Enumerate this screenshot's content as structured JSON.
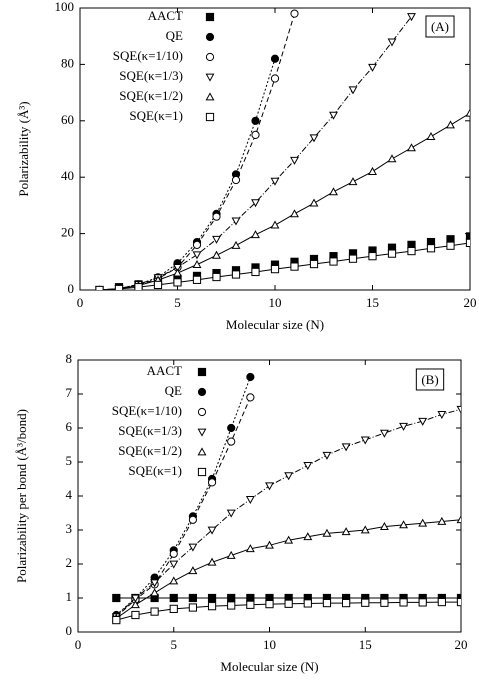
{
  "chart_data": [
    {
      "type": "line",
      "annotation": "(A)",
      "xlabel": "Molecular size (N)",
      "ylabel": "Polarizability (Å³)",
      "x": [
        1,
        2,
        3,
        4,
        5,
        6,
        7,
        8,
        9,
        10,
        11,
        12,
        13,
        14,
        15,
        16,
        17,
        18,
        19,
        20
      ],
      "xlim": [
        0,
        20
      ],
      "ylim": [
        0,
        100
      ],
      "xticks": [
        0,
        5,
        10,
        15,
        20
      ],
      "yticks": [
        0,
        20,
        40,
        60,
        80,
        100
      ],
      "series": [
        {
          "name": "AACT",
          "color": "#000000",
          "marker": "square-filled",
          "dash": "none",
          "values": [
            0,
            1,
            2,
            3,
            4,
            5,
            6,
            7,
            8,
            9,
            10,
            11,
            12,
            13,
            14,
            15,
            16,
            17,
            18,
            19
          ]
        },
        {
          "name": "QE",
          "color": "#000000",
          "marker": "circle-filled",
          "dash": "dotted",
          "values": [
            0,
            0.5,
            2,
            4.5,
            9.5,
            17,
            27,
            41,
            60,
            82,
            null,
            null,
            null,
            null,
            null,
            null,
            null,
            null,
            null,
            null
          ]
        },
        {
          "name": "SQE(κ=1/10)",
          "color": "#000000",
          "marker": "circle-open",
          "dash": "dashed",
          "values": [
            0,
            0.5,
            1.8,
            4,
            8,
            16,
            26,
            39,
            55,
            75,
            98,
            null,
            null,
            null,
            null,
            null,
            null,
            null,
            null,
            null
          ]
        },
        {
          "name": "SQE(κ=1/3)",
          "color": "#000000",
          "marker": "triangle-down-open",
          "dash": "dash-dot",
          "values": [
            0,
            0.45,
            2,
            4.4,
            8,
            12.5,
            18,
            24.5,
            31,
            38.6,
            46,
            54,
            62,
            71,
            79,
            88,
            97,
            null,
            null,
            null
          ]
        },
        {
          "name": "SQE(κ=1/2)",
          "color": "#000000",
          "marker": "triangle-up-open",
          "dash": "solid",
          "values": [
            0,
            0.4,
            1.6,
            3.5,
            6,
            9,
            12.3,
            15.8,
            19.6,
            23,
            27,
            30.8,
            34.8,
            38.4,
            42,
            46.5,
            50.4,
            54.4,
            58.5,
            62.7
          ]
        },
        {
          "name": "SQE(κ=1)",
          "color": "#000000",
          "marker": "square-open",
          "dash": "solid",
          "values": [
            0,
            0.35,
            1.0,
            1.8,
            2.7,
            3.6,
            4.6,
            5.5,
            6.4,
            7.4,
            8.3,
            9.2,
            10.1,
            11.1,
            12,
            12.9,
            13.8,
            14.8,
            15.7,
            16.7
          ]
        }
      ]
    },
    {
      "type": "line",
      "annotation": "(B)",
      "xlabel": "Molecular size (N)",
      "ylabel": "Polarizability per bond (Å³/bond)",
      "x": [
        2,
        3,
        4,
        5,
        6,
        7,
        8,
        9,
        10,
        11,
        12,
        13,
        14,
        15,
        16,
        17,
        18,
        19,
        20
      ],
      "xlim": [
        0,
        20
      ],
      "ylim": [
        0,
        8
      ],
      "xticks": [
        0,
        5,
        10,
        15,
        20
      ],
      "yticks": [
        0,
        1,
        2,
        3,
        4,
        5,
        6,
        7,
        8
      ],
      "series": [
        {
          "name": "AACT",
          "color": "#000000",
          "marker": "square-filled",
          "dash": "solid",
          "values": [
            1,
            1,
            1,
            1,
            1,
            1,
            1,
            1,
            1,
            1,
            1,
            1,
            1,
            1,
            1,
            1,
            1,
            1,
            1
          ]
        },
        {
          "name": "QE",
          "color": "#000000",
          "marker": "circle-filled",
          "dash": "dotted",
          "values": [
            0.5,
            1,
            1.6,
            2.4,
            3.4,
            4.5,
            6,
            7.5,
            null,
            null,
            null,
            null,
            null,
            null,
            null,
            null,
            null,
            null,
            null
          ]
        },
        {
          "name": "SQE(κ=1/10)",
          "color": "#000000",
          "marker": "circle-open",
          "dash": "dashed",
          "values": [
            0.45,
            0.95,
            1.4,
            2.3,
            3.3,
            4.4,
            5.6,
            6.9,
            null,
            null,
            null,
            null,
            null,
            null,
            null,
            null,
            null,
            null,
            null
          ]
        },
        {
          "name": "SQE(κ=1/3)",
          "color": "#000000",
          "marker": "triangle-down-open",
          "dash": "dash-dot",
          "values": [
            0.45,
            1.0,
            1.45,
            2.0,
            2.5,
            3.0,
            3.5,
            3.9,
            4.3,
            4.6,
            4.9,
            5.2,
            5.45,
            5.65,
            5.85,
            6.05,
            6.2,
            6.4,
            6.55
          ]
        },
        {
          "name": "SQE(κ=1/2)",
          "color": "#000000",
          "marker": "triangle-up-open",
          "dash": "solid",
          "values": [
            0.4,
            0.8,
            1.15,
            1.5,
            1.8,
            2.05,
            2.25,
            2.45,
            2.55,
            2.7,
            2.8,
            2.9,
            2.95,
            3.0,
            3.1,
            3.15,
            3.2,
            3.25,
            3.3
          ]
        },
        {
          "name": "SQE(κ=1)",
          "color": "#000000",
          "marker": "square-open",
          "dash": "solid",
          "values": [
            0.35,
            0.5,
            0.6,
            0.68,
            0.72,
            0.76,
            0.78,
            0.8,
            0.82,
            0.83,
            0.84,
            0.85,
            0.85,
            0.86,
            0.86,
            0.87,
            0.87,
            0.88,
            0.88
          ]
        }
      ]
    }
  ]
}
